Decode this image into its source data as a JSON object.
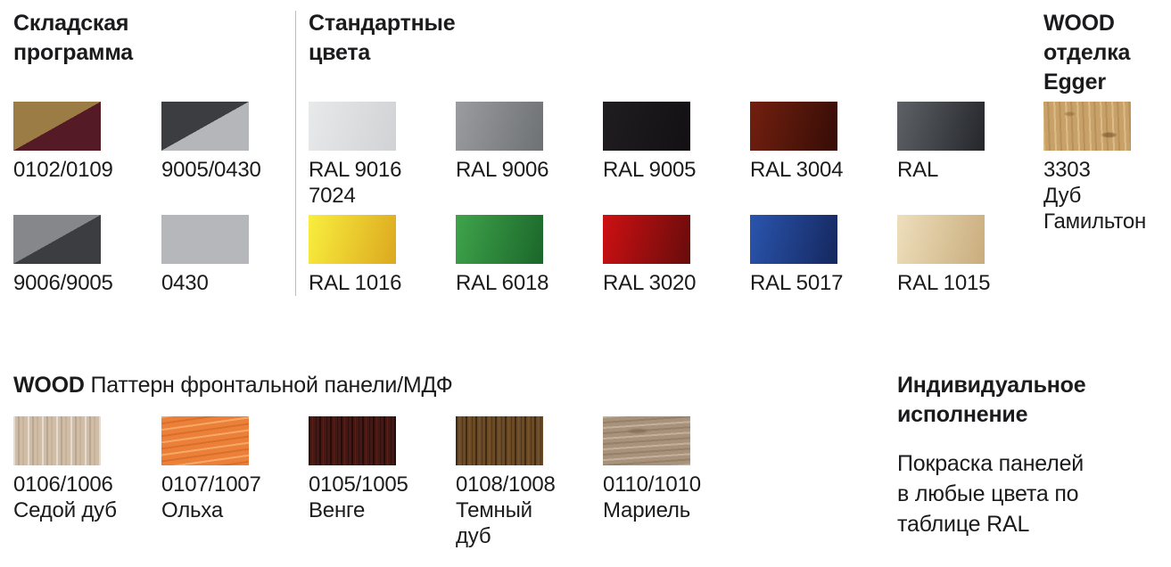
{
  "page": {
    "background": "#FFFFFF",
    "text_color": "#1B1B1D",
    "divider_color": "#BEBEC1"
  },
  "sections": {
    "warehouse": {
      "title": "Складская\nпрограмма",
      "swatches": [
        {
          "type": "diagonal",
          "label_lines": [
            "0102/0109"
          ],
          "color_top_left": "#9C7C45",
          "color_bottom_right": "#541A26"
        },
        {
          "type": "diagonal",
          "label_lines": [
            "9005/0430"
          ],
          "color_top_left": "#3B3D40",
          "color_bottom_right": "#B4B6B9"
        },
        {
          "type": "diagonal",
          "label_lines": [
            "9006/9005"
          ],
          "color_top_left": "#85878A",
          "color_bottom_right": "#3B3D40"
        },
        {
          "type": "solid",
          "label_lines": [
            "0430"
          ],
          "color": "#B5B7BA"
        }
      ]
    },
    "standard": {
      "title": "Стандартные\nцвета",
      "rows": [
        [
          {
            "type": "gradient",
            "label_lines": [
              "RAL 9016",
              "7024"
            ],
            "from": "#E7E9EA",
            "to": "#D0D2D5"
          },
          {
            "type": "gradient",
            "label_lines": [
              "RAL 9006"
            ],
            "from": "#9A9CA0",
            "to": "#6E7174"
          },
          {
            "type": "gradient",
            "label_lines": [
              "RAL 9005"
            ],
            "from": "#201D20",
            "to": "#131014"
          },
          {
            "type": "gradient",
            "label_lines": [
              "RAL 3004"
            ],
            "from": "#73200F",
            "to": "#350C06"
          },
          {
            "type": "gradient",
            "label_lines": [
              "RAL"
            ],
            "from": "#5E6267",
            "to": "#24262A"
          }
        ],
        [
          {
            "type": "gradient",
            "label_lines": [
              "RAL 1016"
            ],
            "from": "#F9EE3E",
            "to": "#DCA81F"
          },
          {
            "type": "gradient",
            "label_lines": [
              "RAL 6018"
            ],
            "from": "#3FA44B",
            "to": "#1B662A"
          },
          {
            "type": "gradient",
            "label_lines": [
              "RAL 3020"
            ],
            "from": "#CE1013",
            "to": "#670C0B"
          },
          {
            "type": "gradient",
            "label_lines": [
              "RAL 5017"
            ],
            "from": "#2A55AE",
            "to": "#15275E"
          },
          {
            "type": "gradient",
            "label_lines": [
              "RAL 1015"
            ],
            "from": "#EEDFBC",
            "to": "#C9AC7C"
          }
        ]
      ]
    },
    "egger": {
      "title": "WOOD\nотделка\nEgger",
      "swatch": {
        "type": "wood",
        "wood": "hamilton-oak",
        "label_lines": [
          "3303",
          "Дуб",
          "Гамильтон"
        ]
      }
    },
    "wood_pattern": {
      "title_bold": "WOOD",
      "title_rest": " Паттерн фронтальной панели/МДФ",
      "swatches": [
        {
          "type": "wood",
          "wood": "gray-oak",
          "label_lines": [
            "0106/1006",
            "Седой дуб"
          ]
        },
        {
          "type": "wood",
          "wood": "alder",
          "label_lines": [
            "0107/1007",
            "Ольха"
          ]
        },
        {
          "type": "wood",
          "wood": "wenge",
          "label_lines": [
            "0105/1005",
            "Венге"
          ]
        },
        {
          "type": "wood",
          "wood": "dark-oak",
          "label_lines": [
            "0108/1008",
            "Темный",
            "дуб"
          ]
        },
        {
          "type": "wood",
          "wood": "mariel",
          "label_lines": [
            "0110/1010",
            "Мариель"
          ]
        }
      ]
    },
    "custom": {
      "title": "Индивидуальное\nисполнение",
      "body": "Покраска панелей\nв любые цвета по\nтаблице RAL"
    }
  }
}
